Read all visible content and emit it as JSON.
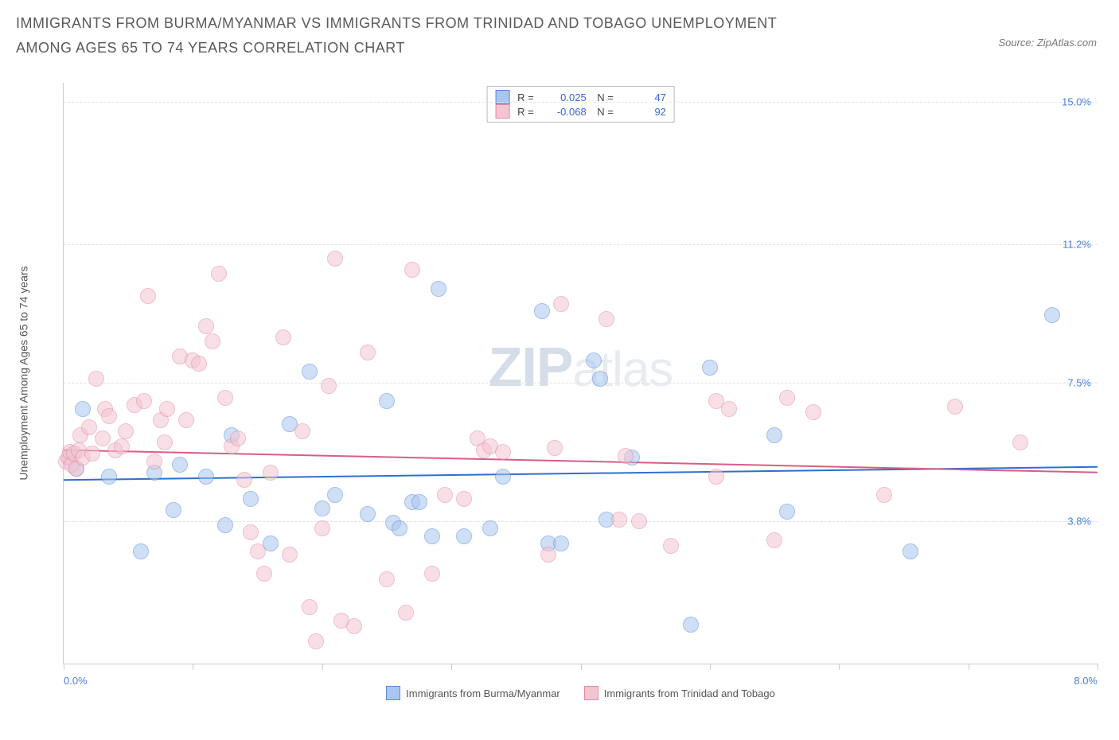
{
  "title": "IMMIGRANTS FROM BURMA/MYANMAR VS IMMIGRANTS FROM TRINIDAD AND TOBAGO UNEMPLOYMENT AMONG AGES 65 TO 74 YEARS CORRELATION CHART",
  "source_prefix": "Source: ",
  "source_name": "ZipAtlas.com",
  "y_axis_label": "Unemployment Among Ages 65 to 74 years",
  "watermark_zip": "ZIP",
  "watermark_atlas": "atlas",
  "chart": {
    "type": "scatter",
    "background_color": "#ffffff",
    "grid_color": "#e3e3e3",
    "axis_color": "#cccccc",
    "tick_label_color": "#4b7de0",
    "x_axis": {
      "min": 0.0,
      "max": 8.0,
      "ticks": [
        0,
        1,
        2,
        3,
        4,
        5,
        6,
        7,
        8
      ],
      "label_min": "0.0%",
      "label_max": "8.0%"
    },
    "y_axis": {
      "min": 0.0,
      "max": 15.5,
      "ticks": [
        3.8,
        7.5,
        11.2,
        15.0
      ],
      "tick_labels": [
        "3.8%",
        "7.5%",
        "11.2%",
        "15.0%"
      ]
    },
    "point_radius": 9,
    "point_opacity": 0.55,
    "line_width": 2,
    "series": [
      {
        "id": "burma",
        "label": "Immigrants from Burma/Myanmar",
        "color_fill": "#a9c6f0",
        "color_border": "#5a8cd6",
        "line_color": "#2f6fcf",
        "R": "0.025",
        "N": "47",
        "trend": {
          "y_at_xmin": 4.9,
          "y_at_xmax": 5.25
        },
        "points": [
          [
            0.05,
            5.5
          ],
          [
            0.1,
            5.2
          ],
          [
            0.15,
            6.8
          ],
          [
            0.35,
            5.0
          ],
          [
            0.6,
            3.0
          ],
          [
            0.7,
            5.1
          ],
          [
            0.85,
            4.1
          ],
          [
            0.9,
            5.3
          ],
          [
            1.1,
            5.0
          ],
          [
            1.25,
            3.7
          ],
          [
            1.3,
            6.1
          ],
          [
            1.45,
            4.4
          ],
          [
            1.6,
            3.2
          ],
          [
            1.75,
            6.4
          ],
          [
            1.9,
            7.8
          ],
          [
            2.0,
            4.15
          ],
          [
            2.1,
            4.5
          ],
          [
            2.35,
            4.0
          ],
          [
            2.5,
            7.0
          ],
          [
            2.55,
            3.75
          ],
          [
            2.6,
            3.6
          ],
          [
            2.7,
            4.3
          ],
          [
            2.75,
            4.3
          ],
          [
            2.85,
            3.4
          ],
          [
            2.9,
            10.0
          ],
          [
            3.1,
            3.4
          ],
          [
            3.3,
            3.6
          ],
          [
            3.4,
            5.0
          ],
          [
            3.7,
            9.4
          ],
          [
            3.75,
            3.2
          ],
          [
            3.85,
            3.2
          ],
          [
            4.1,
            8.1
          ],
          [
            4.15,
            7.6
          ],
          [
            4.2,
            3.85
          ],
          [
            4.4,
            5.5
          ],
          [
            4.85,
            1.05
          ],
          [
            5.0,
            7.9
          ],
          [
            5.5,
            6.1
          ],
          [
            5.6,
            4.05
          ],
          [
            6.55,
            3.0
          ],
          [
            7.65,
            9.3
          ]
        ]
      },
      {
        "id": "trinidad",
        "label": "Immigrants from Trinidad and Tobago",
        "color_fill": "#f4c5d1",
        "color_border": "#e28ba3",
        "line_color": "#d95d85",
        "R": "-0.068",
        "N": "92",
        "trend": {
          "y_at_xmin": 5.7,
          "y_at_xmax": 5.1
        },
        "points": [
          [
            0.02,
            5.4
          ],
          [
            0.04,
            5.5
          ],
          [
            0.05,
            5.65
          ],
          [
            0.06,
            5.3
          ],
          [
            0.08,
            5.6
          ],
          [
            0.1,
            5.2
          ],
          [
            0.12,
            5.7
          ],
          [
            0.15,
            5.5
          ],
          [
            0.13,
            6.1
          ],
          [
            0.2,
            6.3
          ],
          [
            0.22,
            5.6
          ],
          [
            0.25,
            7.6
          ],
          [
            0.3,
            6.0
          ],
          [
            0.32,
            6.8
          ],
          [
            0.35,
            6.6
          ],
          [
            0.4,
            5.7
          ],
          [
            0.45,
            5.8
          ],
          [
            0.48,
            6.2
          ],
          [
            0.55,
            6.9
          ],
          [
            0.62,
            7.0
          ],
          [
            0.65,
            9.8
          ],
          [
            0.7,
            5.4
          ],
          [
            0.75,
            6.5
          ],
          [
            0.78,
            5.9
          ],
          [
            0.8,
            6.8
          ],
          [
            0.9,
            8.2
          ],
          [
            0.95,
            6.5
          ],
          [
            1.0,
            8.1
          ],
          [
            1.05,
            8.0
          ],
          [
            1.1,
            9.0
          ],
          [
            1.15,
            8.6
          ],
          [
            1.2,
            10.4
          ],
          [
            1.25,
            7.1
          ],
          [
            1.3,
            5.8
          ],
          [
            1.35,
            6.0
          ],
          [
            1.4,
            4.9
          ],
          [
            1.45,
            3.5
          ],
          [
            1.5,
            3.0
          ],
          [
            1.55,
            2.4
          ],
          [
            1.6,
            5.1
          ],
          [
            1.7,
            8.7
          ],
          [
            1.75,
            2.9
          ],
          [
            1.85,
            6.2
          ],
          [
            1.9,
            1.5
          ],
          [
            1.95,
            0.6
          ],
          [
            2.0,
            3.6
          ],
          [
            2.05,
            7.4
          ],
          [
            2.1,
            10.8
          ],
          [
            2.15,
            1.15
          ],
          [
            2.25,
            1.0
          ],
          [
            2.35,
            8.3
          ],
          [
            2.5,
            2.25
          ],
          [
            2.65,
            1.35
          ],
          [
            2.7,
            10.5
          ],
          [
            2.85,
            2.4
          ],
          [
            2.95,
            4.5
          ],
          [
            3.1,
            4.4
          ],
          [
            3.2,
            6.0
          ],
          [
            3.25,
            5.7
          ],
          [
            3.3,
            5.8
          ],
          [
            3.4,
            5.65
          ],
          [
            3.75,
            2.9
          ],
          [
            3.8,
            5.75
          ],
          [
            3.85,
            9.6
          ],
          [
            4.2,
            9.2
          ],
          [
            4.3,
            3.85
          ],
          [
            4.35,
            5.55
          ],
          [
            4.45,
            3.8
          ],
          [
            4.7,
            3.15
          ],
          [
            5.05,
            7.0
          ],
          [
            5.05,
            5.0
          ],
          [
            5.15,
            6.8
          ],
          [
            5.5,
            3.3
          ],
          [
            5.6,
            7.1
          ],
          [
            5.8,
            6.7
          ],
          [
            6.35,
            4.5
          ],
          [
            6.9,
            6.85
          ],
          [
            7.4,
            5.9
          ]
        ]
      }
    ]
  }
}
